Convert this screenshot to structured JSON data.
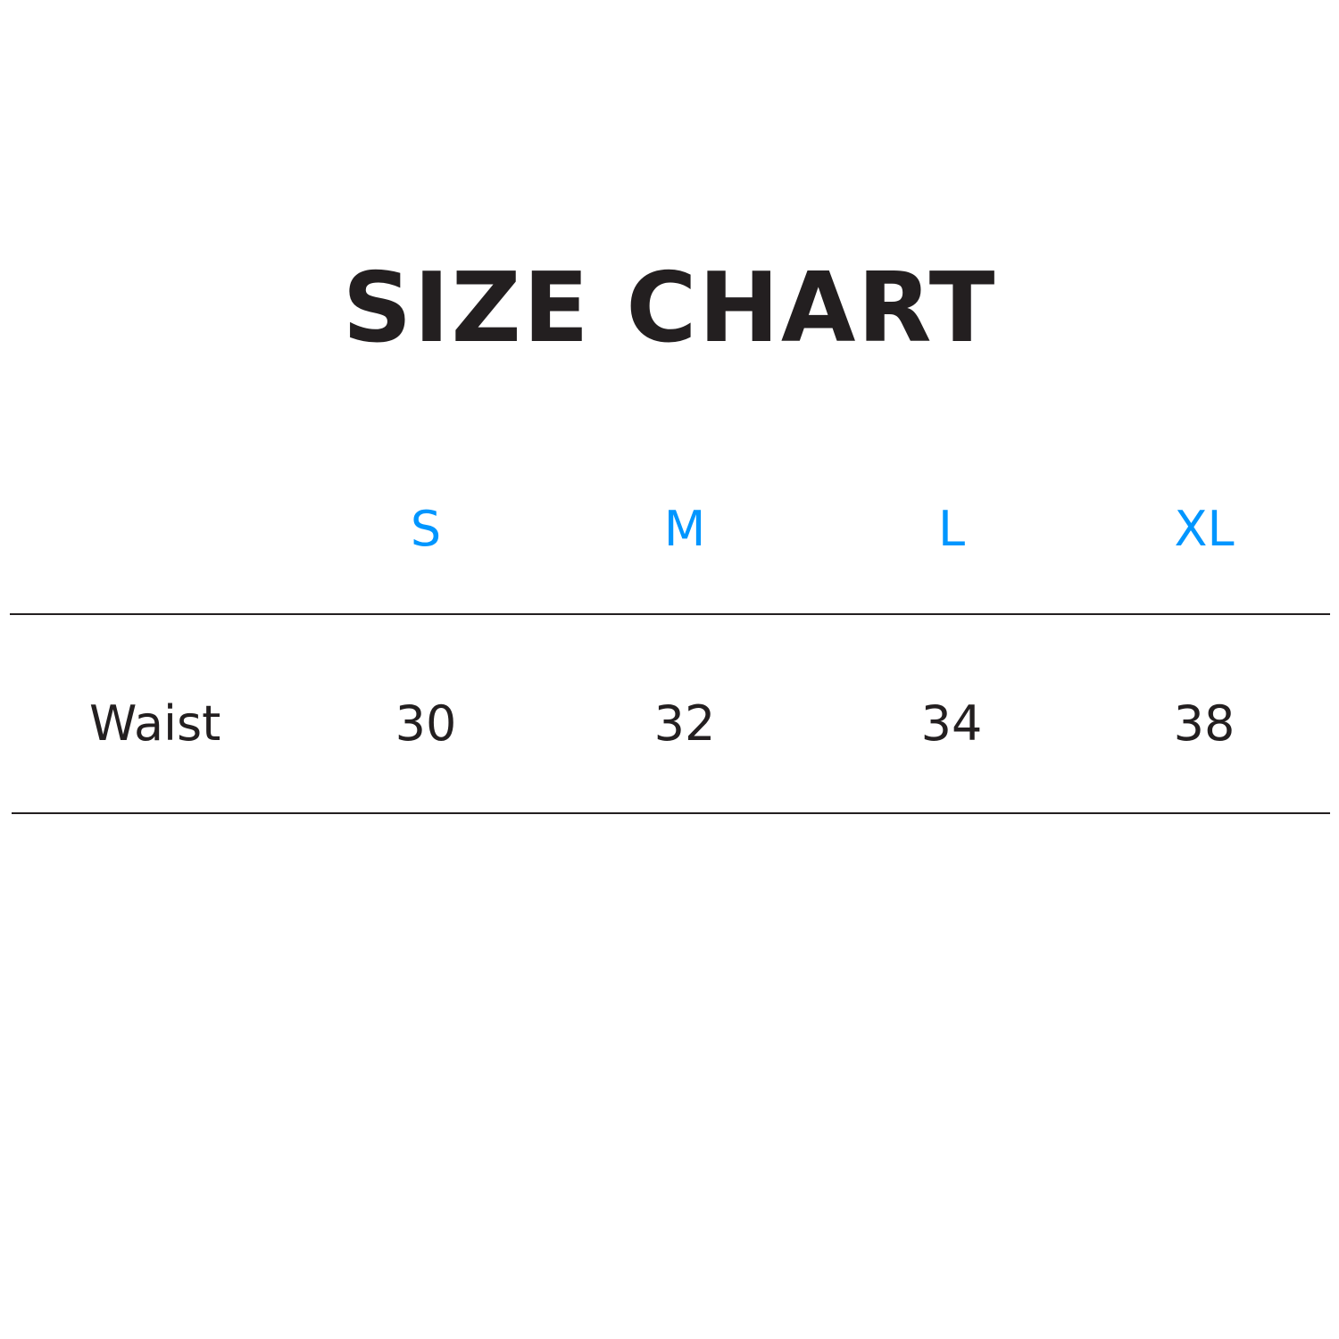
{
  "title": "SIZE CHART",
  "accent_color": "#0096ff",
  "text_color": "#231f20",
  "table": {
    "columns": [
      "S",
      "M",
      "L",
      "XL"
    ],
    "rows": [
      {
        "label": "Waist",
        "values": [
          "30",
          "32",
          "34",
          "38"
        ]
      }
    ]
  }
}
